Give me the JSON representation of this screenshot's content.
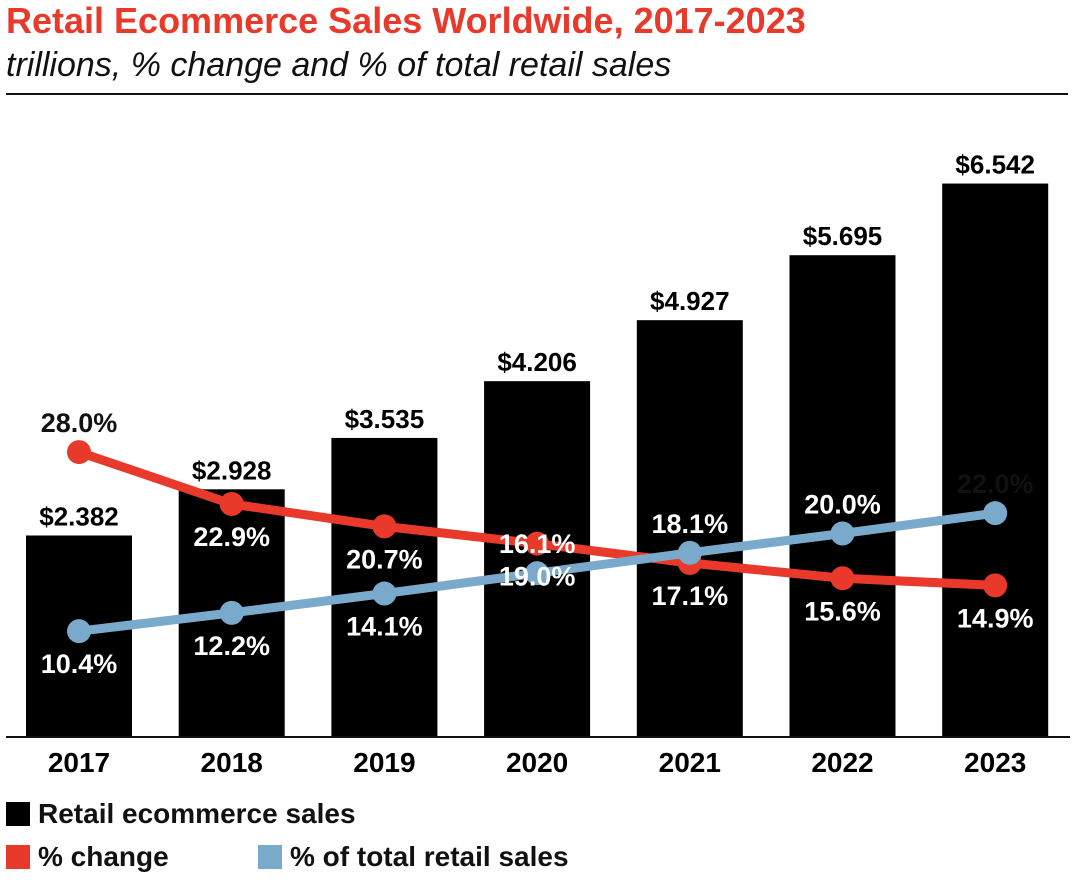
{
  "chart_data": {
    "type": "bar",
    "title": "Retail Ecommerce Sales Worldwide, 2017-2023",
    "subtitle": "trillions, % change and % of total retail sales",
    "categories": [
      "2017",
      "2018",
      "2019",
      "2020",
      "2021",
      "2022",
      "2023"
    ],
    "series": [
      {
        "name": "Retail ecommerce sales",
        "kind": "bar",
        "color": "#000000",
        "values": [
          2.382,
          2.928,
          3.535,
          4.206,
          4.927,
          5.695,
          6.542
        ],
        "labels": [
          "$2.382",
          "$2.928",
          "$3.535",
          "$4.206",
          "$4.927",
          "$5.695",
          "$6.542"
        ]
      },
      {
        "name": "% change",
        "kind": "line",
        "color": "#e8392b",
        "values": [
          28.0,
          22.9,
          20.7,
          19.0,
          17.1,
          15.6,
          14.9
        ],
        "labels": [
          "28.0%",
          "22.9%",
          "20.7%",
          "19.0%",
          "17.1%",
          "15.6%",
          "14.9%"
        ]
      },
      {
        "name": "% of total retail sales",
        "kind": "line",
        "color": "#7aaacb",
        "values": [
          10.4,
          12.2,
          14.1,
          16.1,
          18.1,
          20.0,
          22.0
        ],
        "labels": [
          "10.4%",
          "12.2%",
          "14.1%",
          "16.1%",
          "18.1%",
          "20.0%",
          "22.0%"
        ]
      }
    ],
    "bar_ylim": [
      0,
      7.5
    ],
    "line_ylim": [
      0,
      40
    ],
    "grid": false,
    "legend_position": "bottom-left"
  }
}
